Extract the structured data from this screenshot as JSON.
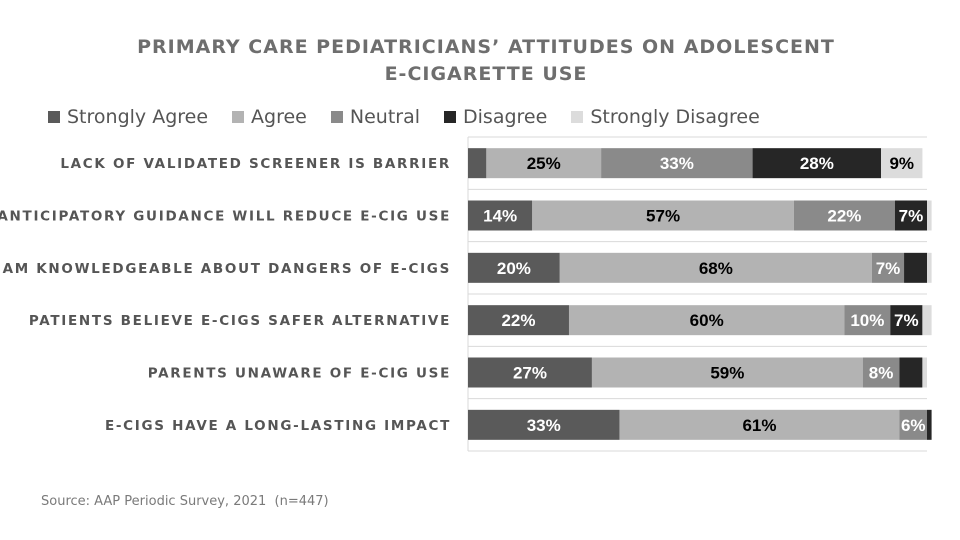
{
  "chart_data": {
    "type": "bar",
    "orientation": "horizontal",
    "stacked": true,
    "title": "PRIMARY CARE PEDIATRICIANS’ ATTITUDES ON ADOLESCENT E-CIGARETTE USE",
    "title_lines": [
      "PRIMARY CARE PEDIATRICIANS’ ATTITUDES ON ADOLESCENT",
      "E-CIGARETTE USE"
    ],
    "legend_position": "top",
    "xlim": [
      0,
      100
    ],
    "grid": true,
    "categories": [
      "LACK OF VALIDATED SCREENER IS BARRIER",
      "ANTICIPATORY GUIDANCE WILL REDUCE E-CIG USE",
      "I AM KNOWLEDGEABLE ABOUT DANGERS OF E-CIGS",
      "PATIENTS BELIEVE E-CIGS SAFER ALTERNATIVE",
      "PARENTS UNAWARE OF E-CIG USE",
      "E-CIGS HAVE A LONG-LASTING IMPACT"
    ],
    "series": [
      {
        "name": "Strongly Agree",
        "color": "#5a5a5a",
        "label_color": "#ffffff",
        "values": [
          4,
          14,
          20,
          22,
          27,
          33
        ],
        "labels": [
          "",
          "14%",
          "20%",
          "22%",
          "27%",
          "33%"
        ]
      },
      {
        "name": "Agree",
        "color": "#b3b3b3",
        "label_color": "#000000",
        "values": [
          25,
          57,
          68,
          60,
          59,
          61
        ],
        "labels": [
          "25%",
          "57%",
          "68%",
          "60%",
          "59%",
          "61%"
        ]
      },
      {
        "name": "Neutral",
        "color": "#8a8a8a",
        "label_color": "#ffffff",
        "values": [
          33,
          22,
          7,
          10,
          8,
          6
        ],
        "labels": [
          "33%",
          "22%",
          "7%",
          "10%",
          "8%",
          "6%"
        ]
      },
      {
        "name": "Disagree",
        "color": "#262626",
        "label_color": "#ffffff",
        "values": [
          28,
          7,
          5,
          7,
          5,
          1
        ],
        "labels": [
          "28%",
          "7%",
          "",
          "7%",
          "",
          ""
        ]
      },
      {
        "name": "Strongly Disagree",
        "color": "#dcdcdc",
        "label_color": "#000000",
        "values": [
          9,
          1,
          1,
          2,
          1,
          0
        ],
        "labels": [
          "9%",
          "",
          "",
          "",
          "",
          ""
        ]
      }
    ]
  },
  "source": "Source: AAP Periodic Survey, 2021  (n=447)"
}
